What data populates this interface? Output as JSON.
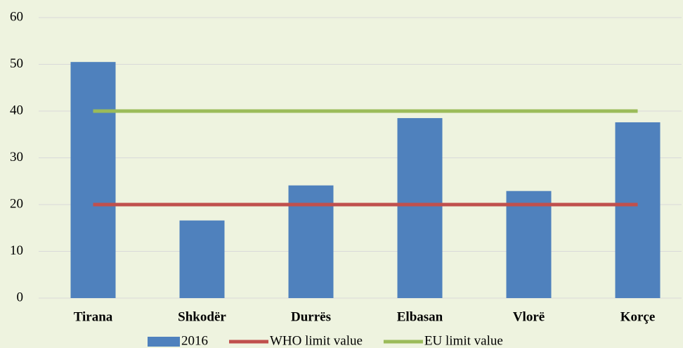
{
  "chart_data": {
    "type": "bar",
    "categories": [
      "Tirana",
      "Shkodër",
      "Durrës",
      "Elbasan",
      "Vlorë",
      "Korçe"
    ],
    "series": [
      {
        "name": "2016",
        "type": "bar",
        "color": "#4f81bd",
        "values": [
          50.5,
          16.6,
          24.1,
          38.5,
          22.9,
          37.6
        ]
      },
      {
        "name": "WHO limit value",
        "type": "line",
        "color": "#c0504d",
        "values": [
          20,
          20,
          20,
          20,
          20,
          20
        ]
      },
      {
        "name": "EU limit value",
        "type": "line",
        "color": "#9bbb59",
        "values": [
          40,
          40,
          40,
          40,
          40,
          40
        ]
      }
    ],
    "ylim": [
      0,
      60
    ],
    "yticks": [
      0,
      10,
      20,
      30,
      40,
      50,
      60
    ],
    "grid": true,
    "legend": "bottom"
  }
}
